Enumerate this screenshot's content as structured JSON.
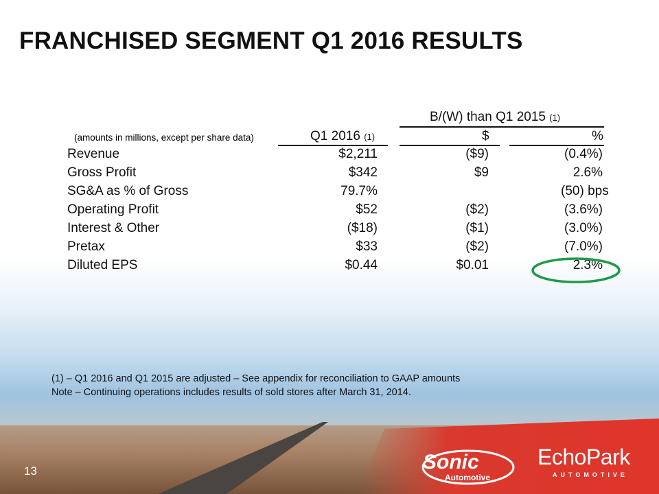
{
  "title": "FRANCHISED SEGMENT Q1 2016 RESULTS",
  "table": {
    "group_header": "B/(W) than Q1 2015",
    "group_note": "(1)",
    "units_note": "(amounts in millions, except per share data)",
    "col_q1": "Q1 2016",
    "col_q1_note": "(1)",
    "col_dollar": "$",
    "col_pct": "%",
    "rows": [
      {
        "label": "Revenue",
        "q1": "$2,211",
        "dollar": "($9)",
        "pct": "(0.4%)"
      },
      {
        "label": "Gross Profit",
        "q1": "$342",
        "dollar": "$9",
        "pct": "2.6%"
      },
      {
        "label": "SG&A as % of Gross",
        "q1": "79.7%",
        "dollar": "",
        "pct": "(50) bps"
      },
      {
        "label": "Operating Profit",
        "q1": "$52",
        "dollar": "($2)",
        "pct": "(3.6%)"
      },
      {
        "label": "Interest & Other",
        "q1": "($18)",
        "dollar": "($1)",
        "pct": "(3.0%)"
      },
      {
        "label": "Pretax",
        "q1": "$33",
        "dollar": "($2)",
        "pct": "(7.0%)"
      },
      {
        "label": "Diluted EPS",
        "q1": "$0.44",
        "dollar": "$0.01",
        "pct": "2.3%"
      }
    ],
    "highlight_color": "#1f9a4a"
  },
  "footnotes": [
    "(1) – Q1 2016 and Q1 2015 are adjusted – See appendix for reconciliation to GAAP amounts",
    "Note – Continuing operations includes results of sold stores after March 31, 2014."
  ],
  "page_number": "13",
  "logos": {
    "sonic": "Sonic",
    "sonic_sub": "Automotive",
    "echo": "EchoPark",
    "echo_sub": "AUTOMOTIVE"
  }
}
